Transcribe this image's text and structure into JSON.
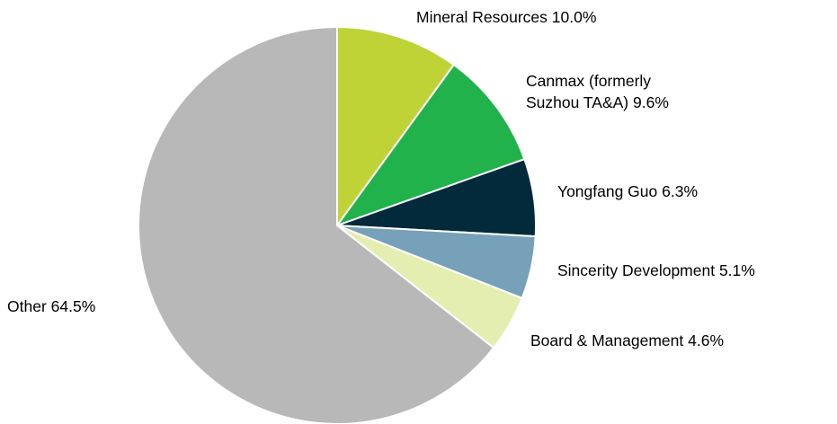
{
  "chart_data": {
    "type": "pie",
    "categories": [
      "Mineral Resources",
      "Canmax (formerly Suzhou TA&A)",
      "Yongfang Guo",
      "Sincerity Development",
      "Board & Management",
      "Other"
    ],
    "values": [
      10.0,
      9.6,
      6.3,
      5.1,
      4.6,
      64.5
    ],
    "value_labels": [
      "10.0%",
      "9.6%",
      "6.3%",
      "5.1%",
      "4.6%",
      "64.5%"
    ],
    "colors": [
      "#bfd337",
      "#21b24b",
      "#022a3a",
      "#77a1b8",
      "#e4eeb0",
      "#b8b8b8"
    ]
  }
}
